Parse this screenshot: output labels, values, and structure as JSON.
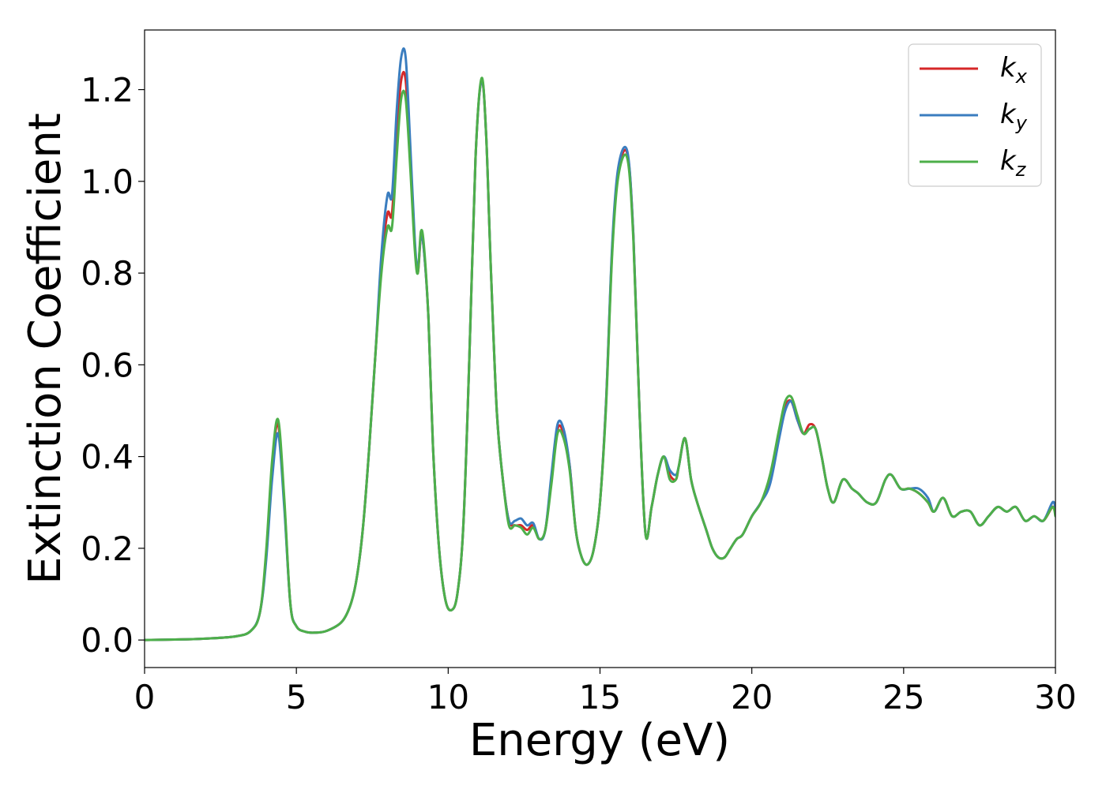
{
  "chart_data": {
    "type": "line",
    "xlabel": "Energy (eV)",
    "ylabel": "Extinction Coefficient",
    "xlim": [
      0,
      30
    ],
    "ylim": [
      -0.06,
      1.33
    ],
    "xticks": [
      "0",
      "5",
      "10",
      "15",
      "20",
      "25",
      "30"
    ],
    "yticks": [
      "0.0",
      "0.2",
      "0.4",
      "0.6",
      "0.8",
      "1.0",
      "1.2"
    ],
    "grid": false,
    "legend_position": "top-right",
    "x": [
      0,
      1,
      2,
      3,
      3.5,
      3.8,
      4.0,
      4.2,
      4.4,
      4.6,
      4.8,
      5.0,
      5.3,
      5.6,
      6.0,
      6.5,
      6.8,
      7.0,
      7.2,
      7.4,
      7.6,
      7.8,
      8.0,
      8.15,
      8.3,
      8.45,
      8.6,
      8.75,
      8.9,
      9.0,
      9.1,
      9.2,
      9.35,
      9.5,
      9.7,
      9.9,
      10.1,
      10.3,
      10.5,
      10.7,
      10.9,
      11.1,
      11.25,
      11.4,
      11.6,
      11.8,
      12.0,
      12.2,
      12.4,
      12.6,
      12.8,
      13.0,
      13.2,
      13.4,
      13.6,
      13.8,
      14.0,
      14.2,
      14.4,
      14.6,
      14.8,
      15.0,
      15.2,
      15.4,
      15.6,
      15.9,
      16.1,
      16.3,
      16.5,
      16.7,
      16.9,
      17.1,
      17.3,
      17.5,
      17.6,
      17.8,
      18.0,
      18.2,
      18.5,
      18.7,
      18.9,
      19.1,
      19.3,
      19.5,
      19.7,
      20.0,
      20.3,
      20.6,
      20.9,
      21.1,
      21.3,
      21.5,
      21.7,
      21.9,
      22.1,
      22.3,
      22.5,
      22.7,
      23.0,
      23.3,
      23.5,
      23.8,
      24.1,
      24.4,
      24.6,
      24.9,
      25.2,
      25.5,
      25.8,
      26.0,
      26.3,
      26.6,
      26.9,
      27.2,
      27.5,
      27.8,
      28.1,
      28.4,
      28.7,
      29.0,
      29.3,
      29.6,
      29.9,
      30.0
    ],
    "series": [
      {
        "name": "k_x",
        "color": "#d62728",
        "values": [
          0.0,
          0.001,
          0.003,
          0.008,
          0.02,
          0.06,
          0.18,
          0.38,
          0.47,
          0.3,
          0.08,
          0.03,
          0.018,
          0.016,
          0.02,
          0.04,
          0.08,
          0.14,
          0.25,
          0.42,
          0.62,
          0.82,
          0.93,
          0.93,
          1.1,
          1.22,
          1.22,
          1.05,
          0.86,
          0.8,
          0.88,
          0.85,
          0.7,
          0.42,
          0.2,
          0.09,
          0.065,
          0.1,
          0.25,
          0.62,
          1.05,
          1.22,
          1.1,
          0.82,
          0.5,
          0.35,
          0.26,
          0.25,
          0.25,
          0.24,
          0.25,
          0.22,
          0.24,
          0.35,
          0.46,
          0.45,
          0.38,
          0.24,
          0.18,
          0.165,
          0.2,
          0.3,
          0.52,
          0.85,
          1.02,
          1.06,
          0.88,
          0.5,
          0.23,
          0.29,
          0.36,
          0.4,
          0.36,
          0.35,
          0.38,
          0.44,
          0.35,
          0.3,
          0.24,
          0.2,
          0.18,
          0.18,
          0.2,
          0.22,
          0.23,
          0.27,
          0.3,
          0.35,
          0.45,
          0.51,
          0.52,
          0.48,
          0.45,
          0.47,
          0.46,
          0.4,
          0.33,
          0.3,
          0.35,
          0.33,
          0.32,
          0.3,
          0.3,
          0.35,
          0.36,
          0.33,
          0.33,
          0.32,
          0.3,
          0.28,
          0.31,
          0.27,
          0.28,
          0.28,
          0.25,
          0.27,
          0.29,
          0.28,
          0.29,
          0.26,
          0.27,
          0.26,
          0.29,
          0.28
        ]
      },
      {
        "name": "k_y",
        "color": "#3a7dbf",
        "values": [
          0.0,
          0.001,
          0.003,
          0.008,
          0.02,
          0.06,
          0.17,
          0.35,
          0.45,
          0.29,
          0.08,
          0.03,
          0.018,
          0.016,
          0.02,
          0.04,
          0.08,
          0.14,
          0.25,
          0.42,
          0.62,
          0.84,
          0.97,
          0.97,
          1.15,
          1.27,
          1.27,
          1.08,
          0.87,
          0.81,
          0.88,
          0.85,
          0.7,
          0.42,
          0.2,
          0.09,
          0.065,
          0.1,
          0.25,
          0.62,
          1.05,
          1.22,
          1.1,
          0.82,
          0.5,
          0.35,
          0.26,
          0.26,
          0.265,
          0.25,
          0.255,
          0.22,
          0.24,
          0.36,
          0.47,
          0.46,
          0.38,
          0.24,
          0.18,
          0.165,
          0.2,
          0.3,
          0.52,
          0.86,
          1.03,
          1.065,
          0.88,
          0.5,
          0.23,
          0.29,
          0.36,
          0.4,
          0.37,
          0.36,
          0.38,
          0.44,
          0.35,
          0.3,
          0.24,
          0.2,
          0.18,
          0.18,
          0.2,
          0.22,
          0.23,
          0.27,
          0.3,
          0.34,
          0.44,
          0.5,
          0.52,
          0.48,
          0.45,
          0.46,
          0.46,
          0.4,
          0.33,
          0.3,
          0.35,
          0.33,
          0.32,
          0.3,
          0.3,
          0.35,
          0.36,
          0.33,
          0.33,
          0.33,
          0.31,
          0.28,
          0.31,
          0.27,
          0.28,
          0.28,
          0.25,
          0.27,
          0.29,
          0.28,
          0.29,
          0.26,
          0.27,
          0.26,
          0.3,
          0.29
        ]
      },
      {
        "name": "k_z",
        "color": "#4daf4a",
        "values": [
          0.0,
          0.001,
          0.003,
          0.008,
          0.02,
          0.06,
          0.19,
          0.39,
          0.48,
          0.31,
          0.08,
          0.03,
          0.018,
          0.016,
          0.02,
          0.04,
          0.08,
          0.14,
          0.25,
          0.42,
          0.62,
          0.8,
          0.9,
          0.9,
          1.05,
          1.18,
          1.18,
          1.03,
          0.85,
          0.8,
          0.89,
          0.86,
          0.7,
          0.42,
          0.2,
          0.09,
          0.065,
          0.1,
          0.25,
          0.62,
          1.05,
          1.225,
          1.1,
          0.82,
          0.5,
          0.35,
          0.25,
          0.25,
          0.245,
          0.23,
          0.245,
          0.22,
          0.24,
          0.34,
          0.45,
          0.44,
          0.37,
          0.24,
          0.18,
          0.165,
          0.2,
          0.3,
          0.51,
          0.84,
          1.01,
          1.05,
          0.87,
          0.5,
          0.23,
          0.29,
          0.36,
          0.4,
          0.35,
          0.35,
          0.38,
          0.44,
          0.35,
          0.3,
          0.24,
          0.2,
          0.18,
          0.18,
          0.2,
          0.22,
          0.23,
          0.27,
          0.3,
          0.36,
          0.46,
          0.52,
          0.53,
          0.49,
          0.45,
          0.46,
          0.46,
          0.4,
          0.33,
          0.3,
          0.35,
          0.33,
          0.32,
          0.3,
          0.3,
          0.35,
          0.36,
          0.33,
          0.33,
          0.32,
          0.3,
          0.28,
          0.31,
          0.27,
          0.28,
          0.28,
          0.25,
          0.27,
          0.29,
          0.28,
          0.29,
          0.26,
          0.27,
          0.26,
          0.29,
          0.27
        ]
      }
    ],
    "legend": [
      {
        "base": "k",
        "sub": "x",
        "color": "#d62728"
      },
      {
        "base": "k",
        "sub": "y",
        "color": "#3a7dbf"
      },
      {
        "base": "k",
        "sub": "z",
        "color": "#4daf4a"
      }
    ]
  }
}
